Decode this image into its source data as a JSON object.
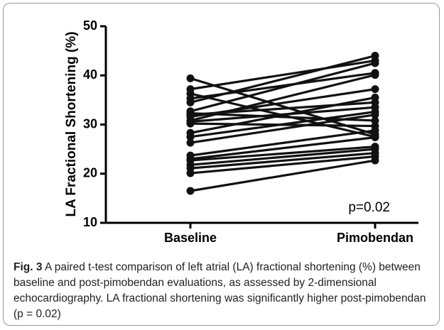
{
  "chart_data": {
    "type": "paired-dot",
    "ylabel": "LA Fractional Shortening (%)",
    "categories": [
      "Baseline",
      "Pimobendan"
    ],
    "color": "#111111",
    "series": [
      {
        "values": [
          39.4,
          28.0
        ]
      },
      {
        "values": [
          37.2,
          43.0
        ]
      },
      {
        "values": [
          36.3,
          27.5
        ]
      },
      {
        "values": [
          35.3,
          40.5
        ]
      },
      {
        "values": [
          34.5,
          44.0
        ]
      },
      {
        "values": [
          32.7,
          42.5
        ]
      },
      {
        "values": [
          32.3,
          30.8
        ]
      },
      {
        "values": [
          31.6,
          37.2
        ]
      },
      {
        "values": [
          30.6,
          33.5
        ]
      },
      {
        "values": [
          30.2,
          29.7
        ]
      },
      {
        "values": [
          28.3,
          35.5
        ]
      },
      {
        "values": [
          27.5,
          32.6
        ]
      },
      {
        "values": [
          26.3,
          32.0
        ]
      },
      {
        "values": [
          23.7,
          28.8
        ]
      },
      {
        "values": [
          22.7,
          25.5
        ]
      },
      {
        "values": [
          21.8,
          25.0
        ]
      },
      {
        "values": [
          21.1,
          24.2
        ]
      },
      {
        "values": [
          20.1,
          23.5
        ]
      },
      {
        "values": [
          16.5,
          22.7
        ]
      },
      {
        "values": [
          30.8,
          40.1
        ]
      },
      {
        "values": [
          32.0,
          34.5
        ]
      },
      {
        "values": [
          23.0,
          27.4
        ]
      }
    ],
    "ylim": [
      10,
      50
    ],
    "yticks": [
      10,
      20,
      30,
      40,
      50
    ],
    "annotation": "p=0.02"
  },
  "caption": {
    "label": "Fig. 3",
    "text": "A paired t-test comparison of left atrial (LA) fractional shortening (%) between baseline and post-pimobendan evaluations, as assessed by 2-dimensional echocardiography. LA fractional shortening was significantly higher post-pimobendan (p = 0.02)"
  }
}
